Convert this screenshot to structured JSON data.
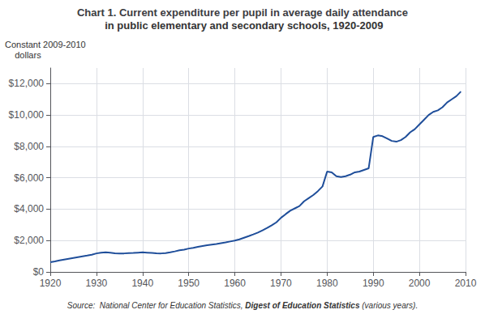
{
  "chart_data": {
    "type": "line",
    "title": "Chart 1. Current expenditure per pupil in average daily attendance",
    "subtitle": " in public elementary and secondary schools, 1920-2009",
    "ylabel": "Constant 2009-2010\n    dollars",
    "source": [
      "Source:  National Center for Education Statistics, ",
      "Digest of Education Statistics",
      " (various years)."
    ],
    "color": "#1F4E9A",
    "grid": true,
    "xlim": [
      1920,
      2010
    ],
    "ylim": [
      0,
      13000
    ],
    "xticks": [
      1920,
      1930,
      1940,
      1950,
      1960,
      1970,
      1980,
      1990,
      2000,
      2010
    ],
    "yticks": [
      {
        "value": 0,
        "label": "$0"
      },
      {
        "value": 2000,
        "label": "$2,000"
      },
      {
        "value": 4000,
        "label": "$4,000"
      },
      {
        "value": 6000,
        "label": "$6,000"
      },
      {
        "value": 8000,
        "label": "$8,000"
      },
      {
        "value": 10000,
        "label": "$10,000"
      },
      {
        "value": 12000,
        "label": "$12,000"
      }
    ],
    "x": [
      1920,
      1921,
      1922,
      1923,
      1924,
      1925,
      1926,
      1927,
      1928,
      1929,
      1930,
      1931,
      1932,
      1933,
      1934,
      1935,
      1936,
      1937,
      1938,
      1939,
      1940,
      1941,
      1942,
      1943,
      1944,
      1945,
      1946,
      1947,
      1948,
      1949,
      1950,
      1951,
      1952,
      1953,
      1954,
      1955,
      1956,
      1957,
      1958,
      1959,
      1960,
      1961,
      1962,
      1963,
      1964,
      1965,
      1966,
      1967,
      1968,
      1969,
      1970,
      1971,
      1972,
      1973,
      1974,
      1975,
      1976,
      1977,
      1978,
      1979,
      1980,
      1981,
      1982,
      1983,
      1984,
      1985,
      1986,
      1987,
      1988,
      1989,
      1990,
      1991,
      1992,
      1993,
      1994,
      1995,
      1996,
      1997,
      1998,
      1999,
      2000,
      2001,
      2002,
      2003,
      2004,
      2005,
      2006,
      2007,
      2008,
      2009
    ],
    "values": [
      620,
      670,
      730,
      790,
      840,
      890,
      940,
      990,
      1040,
      1100,
      1180,
      1230,
      1250,
      1220,
      1190,
      1170,
      1180,
      1200,
      1210,
      1230,
      1250,
      1230,
      1210,
      1190,
      1180,
      1200,
      1250,
      1310,
      1380,
      1420,
      1490,
      1540,
      1600,
      1650,
      1700,
      1740,
      1780,
      1830,
      1880,
      1940,
      2000,
      2080,
      2180,
      2280,
      2390,
      2510,
      2650,
      2800,
      2970,
      3160,
      3450,
      3680,
      3900,
      4050,
      4200,
      4500,
      4700,
      4900,
      5150,
      5450,
      6400,
      6350,
      6100,
      6050,
      6100,
      6200,
      6350,
      6400,
      6500,
      6600,
      8600,
      8700,
      8650,
      8500,
      8350,
      8300,
      8400,
      8600,
      8900,
      9100,
      9400,
      9700,
      10000,
      10200,
      10300,
      10500,
      10800,
      11000,
      11200,
      11500
    ]
  }
}
